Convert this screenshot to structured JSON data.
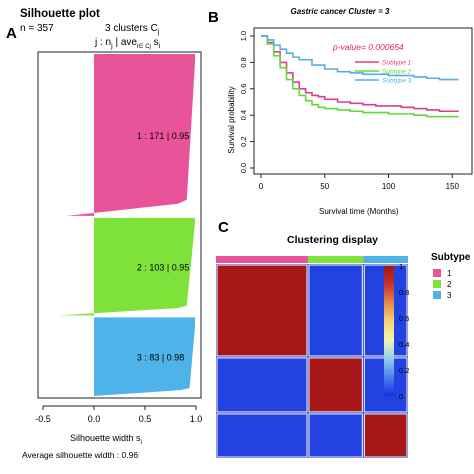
{
  "panels": {
    "a": {
      "letter": "A"
    },
    "b": {
      "letter": "B"
    },
    "c": {
      "letter": "C"
    }
  },
  "chart_data": [
    {
      "id": "silhouette",
      "type": "bar",
      "title": "Silhouette plot",
      "subtitle": "n = 357",
      "legend_header": "3  clusters  C",
      "legend_header_sub": "j",
      "legend_cols": "j :  n",
      "legend_cols_sub": "j",
      "legend_cols_rest": " | ave",
      "legend_cols_rest_sub": "i∈ Cj",
      "legend_cols_end": " s",
      "legend_cols_end_sub": "i",
      "xlabel": "Silhouette width s",
      "xlabel_sub": "i",
      "footer": "Average silhouette width :  0.96",
      "xlim": [
        -0.5,
        1.0
      ],
      "xticks": [
        "-0.5",
        "0.0",
        "0.5",
        "1.0"
      ],
      "xtick_values": [
        -0.5,
        0.0,
        0.5,
        1.0
      ],
      "clusters": [
        {
          "label": "1 :   171  |  0.95",
          "n": 171,
          "avg": 0.95,
          "color": "#e9539a",
          "min_width": -0.27
        },
        {
          "label": "2 :   103  |  0.95",
          "n": 103,
          "avg": 0.95,
          "color": "#7ee23a",
          "min_width": -0.35
        },
        {
          "label": "3 :   83  |  0.98",
          "n": 83,
          "avg": 0.98,
          "color": "#4fb2e8",
          "min_width": 0.0
        }
      ]
    },
    {
      "id": "survival",
      "type": "line",
      "title": "Gastric cancer Cluster = 3",
      "xlabel": "Survival time (Months)",
      "ylabel": "Survival probability",
      "xlim": [
        0,
        160
      ],
      "ylim": [
        0,
        1.0
      ],
      "xticks": [
        "0",
        "50",
        "100",
        "150"
      ],
      "xtick_values": [
        0,
        50,
        100,
        150
      ],
      "yticks": [
        "0.0",
        "0.2",
        "0.4",
        "0.6",
        "0.8",
        "1.0"
      ],
      "ytick_values": [
        0,
        0.2,
        0.4,
        0.6,
        0.8,
        1.0
      ],
      "annotation": "p-value= 0.000654",
      "annotation_color": "#e8196f",
      "series": [
        {
          "name": "Subtype 1",
          "color": "#e23b8a",
          "x": [
            0,
            5,
            10,
            15,
            20,
            25,
            30,
            35,
            40,
            45,
            50,
            60,
            70,
            80,
            90,
            100,
            110,
            120,
            130,
            140,
            155
          ],
          "y": [
            1.0,
            0.95,
            0.88,
            0.8,
            0.72,
            0.65,
            0.6,
            0.57,
            0.55,
            0.54,
            0.52,
            0.5,
            0.49,
            0.48,
            0.47,
            0.47,
            0.46,
            0.45,
            0.44,
            0.43,
            0.43
          ]
        },
        {
          "name": "Subtype 2",
          "color": "#63d83a",
          "x": [
            0,
            5,
            10,
            15,
            20,
            25,
            30,
            35,
            40,
            45,
            50,
            60,
            70,
            80,
            90,
            100,
            110,
            120,
            130,
            140,
            155
          ],
          "y": [
            1.0,
            0.94,
            0.85,
            0.76,
            0.67,
            0.6,
            0.55,
            0.51,
            0.48,
            0.46,
            0.45,
            0.44,
            0.43,
            0.42,
            0.42,
            0.41,
            0.41,
            0.4,
            0.39,
            0.39,
            0.39
          ]
        },
        {
          "name": "Subtype 3",
          "color": "#55aee8",
          "x": [
            0,
            5,
            10,
            15,
            20,
            25,
            30,
            40,
            50,
            60,
            70,
            80,
            90,
            100,
            110,
            120,
            130,
            140,
            155
          ],
          "y": [
            1.0,
            0.97,
            0.93,
            0.9,
            0.87,
            0.84,
            0.82,
            0.78,
            0.75,
            0.73,
            0.72,
            0.71,
            0.71,
            0.7,
            0.7,
            0.69,
            0.68,
            0.67,
            0.67
          ]
        }
      ]
    },
    {
      "id": "clustering",
      "type": "heatmap",
      "title": "Clustering display",
      "legend_title": "Subtype",
      "legend_labels": [
        "1",
        "2",
        "3"
      ],
      "legend_colors": [
        "#e9539a",
        "#7ee23a",
        "#4fb2e8"
      ],
      "cluster_sizes": [
        171,
        103,
        83
      ],
      "scale_ticks": [
        "0",
        "0.2",
        "0.4",
        "0.6",
        "0.8",
        "1"
      ],
      "scale_values": [
        0,
        0.2,
        0.4,
        0.6,
        0.8,
        1.0
      ],
      "scale_colors": [
        "#1a2fe0",
        "#4d7ef0",
        "#8fd0f0",
        "#f4f2b0",
        "#f6d27a",
        "#e58b45",
        "#c7342a",
        "#a31515"
      ],
      "within_value": 1.0,
      "between_value": 0.0,
      "within_color": "#a81717",
      "between_color": "#2343e0"
    }
  ]
}
